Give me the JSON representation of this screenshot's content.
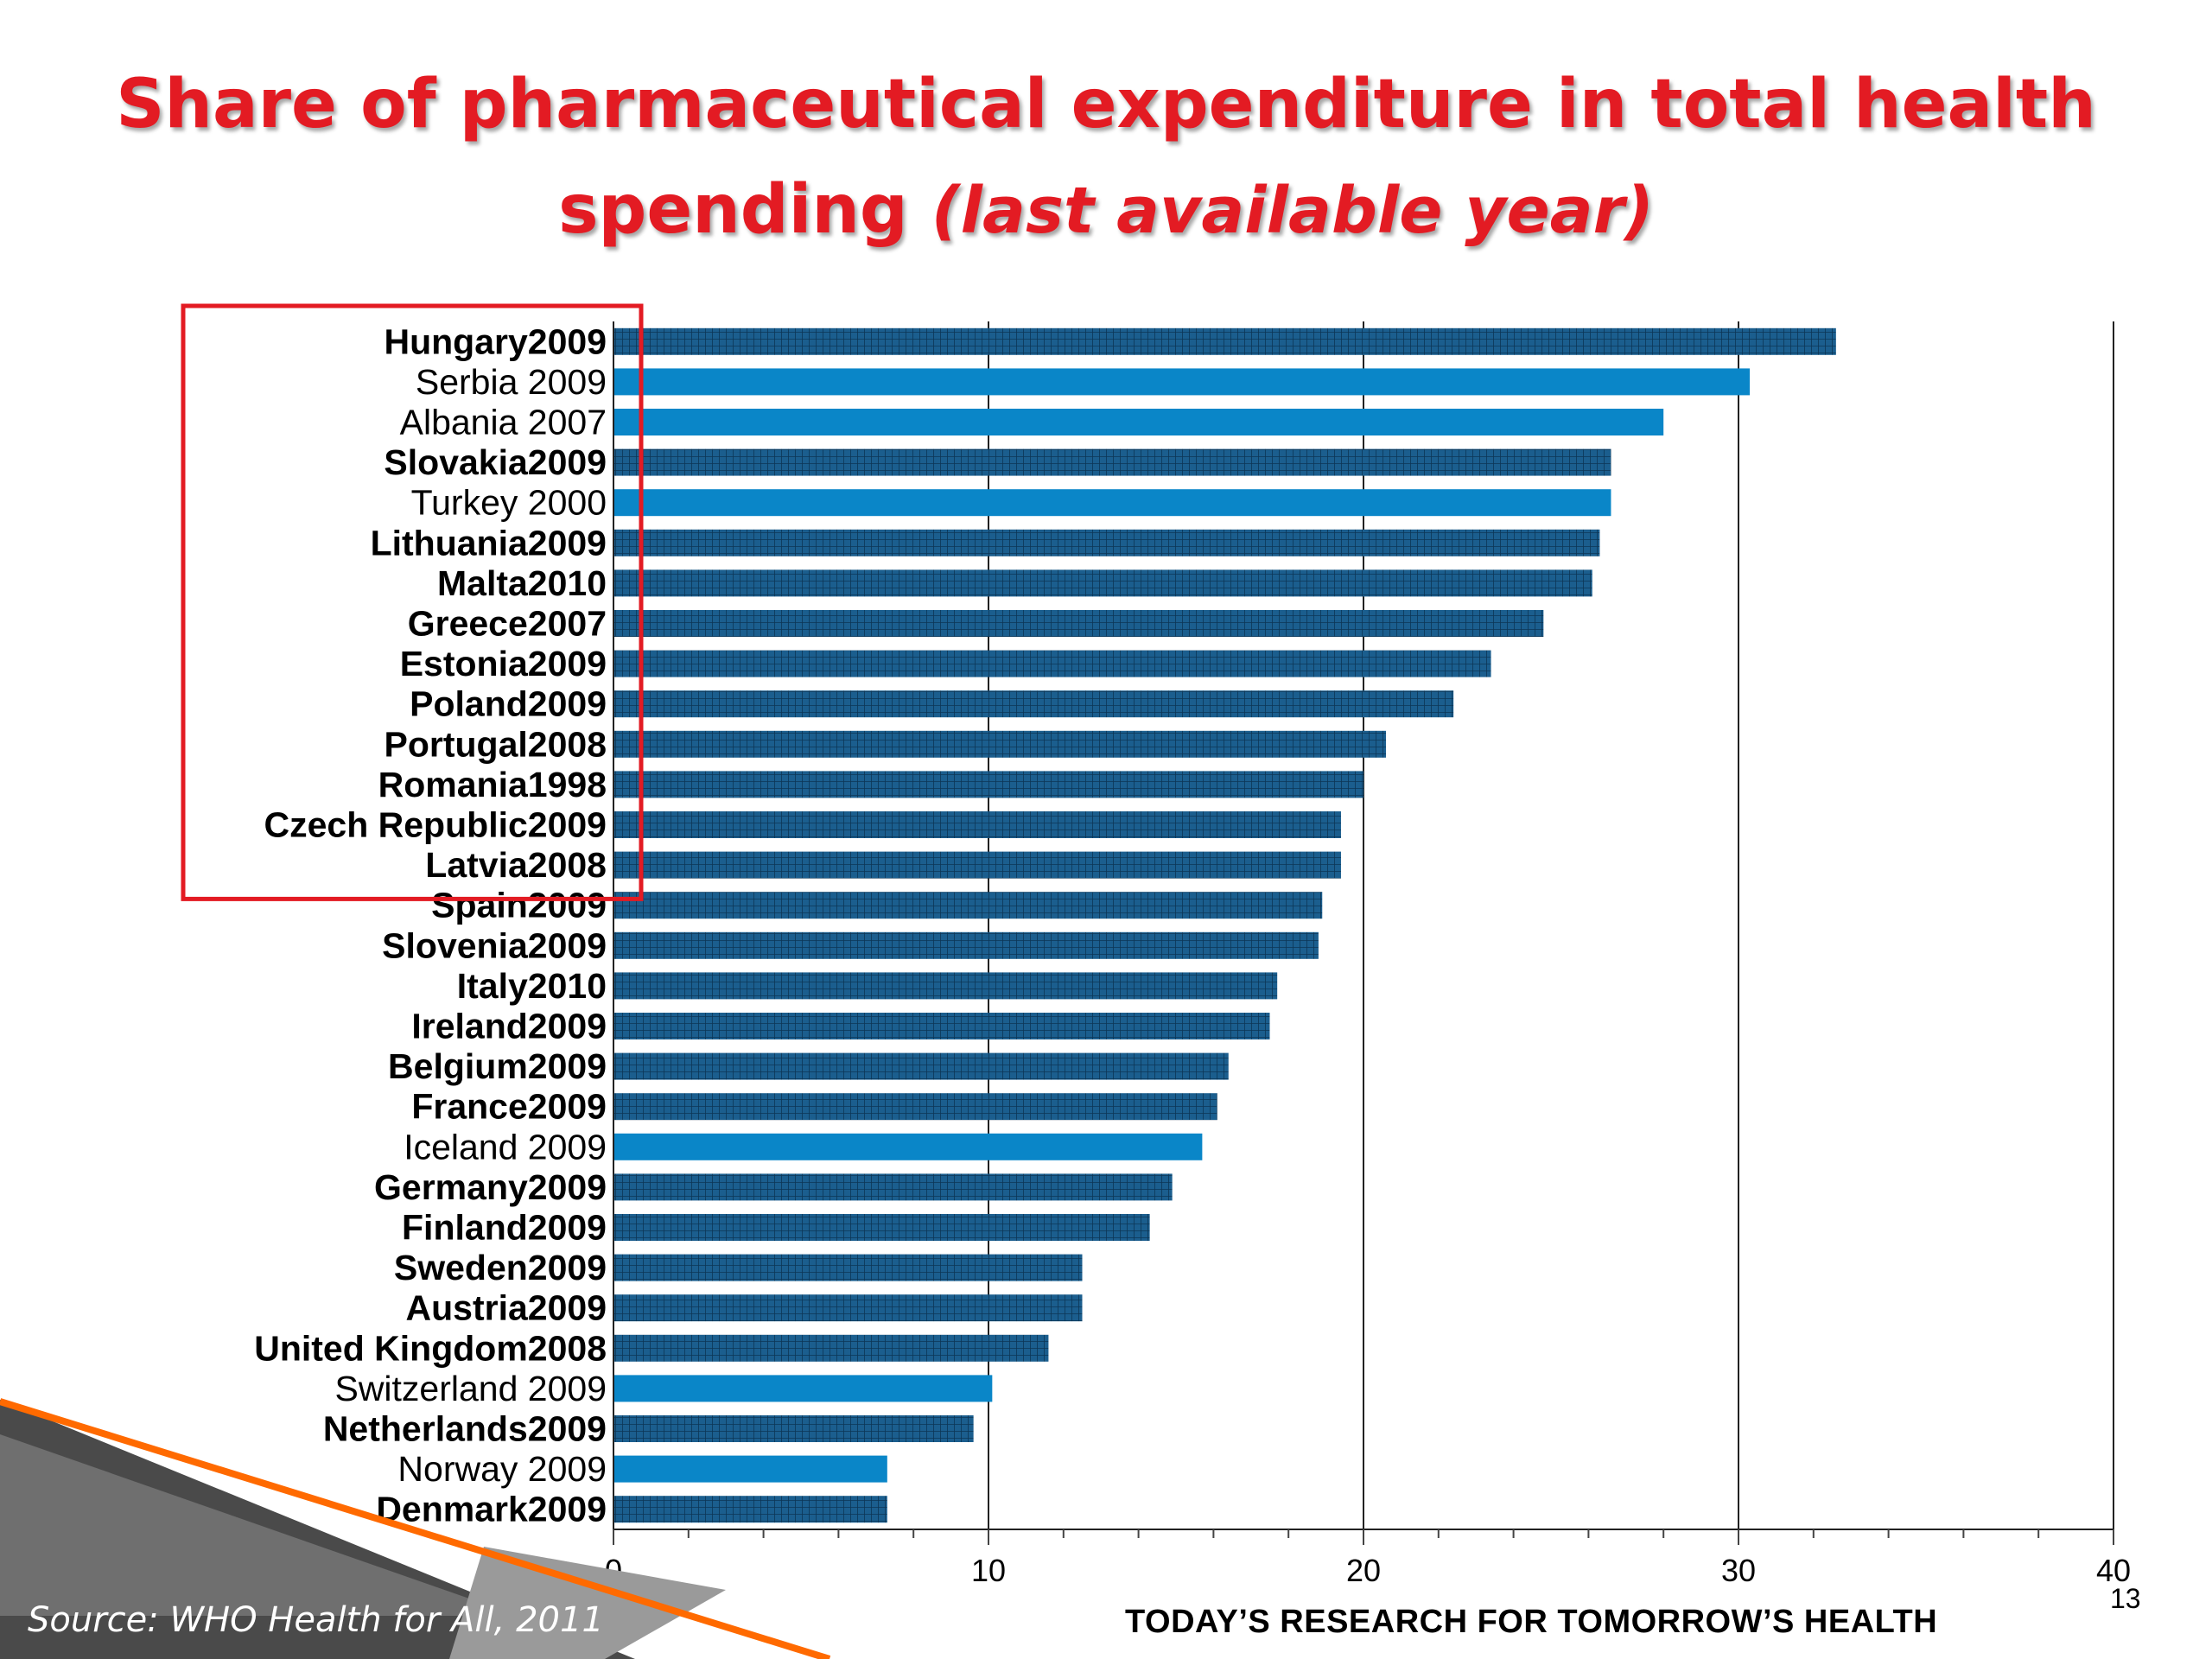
{
  "slide": {
    "title_main": "Share of pharmaceutical expenditure in total health",
    "title_line2": "spending",
    "title_suffix": "(last available year)",
    "source": "Source: WHO Health for All, 2011",
    "tagline": "TODAY’S RESEARCH FOR TOMORROW’S HEALTH",
    "page_number": "13"
  },
  "colors": {
    "title": "#e31b23",
    "bar_eu": "#1b5e8e",
    "bar_non_eu": "#0a86c8",
    "highlight_box": "#e31b23"
  },
  "chart_data": {
    "type": "bar",
    "orientation": "horizontal",
    "title": "",
    "xlabel": "",
    "ylabel": "",
    "xlim": [
      0,
      40
    ],
    "xticks": [
      0,
      10,
      20,
      30,
      40
    ],
    "grid": true,
    "categories": [
      "Hungary2009",
      "Serbia 2009",
      "Albania 2007",
      "Slovakia2009",
      "Turkey 2000",
      "Lithuania2009",
      "Malta2010",
      "Greece2007",
      "Estonia2009",
      "Poland2009",
      "Portugal2008",
      "Romania1998",
      "Czech Republic2009",
      "Latvia2008",
      "Spain2009",
      "Slovenia2009",
      "Italy2010",
      "Ireland2009",
      "Belgium2009",
      "France2009",
      "Iceland 2009",
      "Germany2009",
      "Finland2009",
      "Sweden2009",
      "Austria2009",
      "United Kingdom2008",
      "Switzerland 2009",
      "Netherlands2009",
      "Norway 2009",
      "Denmark2009"
    ],
    "values": [
      32.6,
      30.3,
      28.0,
      26.6,
      26.6,
      26.3,
      26.1,
      24.8,
      23.4,
      22.4,
      20.6,
      20.0,
      19.4,
      19.4,
      18.9,
      18.8,
      17.7,
      17.5,
      16.4,
      16.1,
      15.7,
      14.9,
      14.3,
      12.5,
      12.5,
      11.6,
      10.1,
      9.6,
      7.3,
      7.3
    ],
    "eu_member": [
      true,
      false,
      false,
      true,
      false,
      true,
      true,
      true,
      true,
      true,
      true,
      true,
      true,
      true,
      true,
      true,
      true,
      true,
      true,
      true,
      false,
      true,
      true,
      true,
      true,
      true,
      false,
      true,
      false,
      true
    ],
    "highlighted_categories": [
      "Hungary2009",
      "Serbia 2009",
      "Albania 2007",
      "Slovakia2009",
      "Turkey 2000",
      "Lithuania2009",
      "Malta2010",
      "Greece2007",
      "Estonia2009",
      "Poland2009",
      "Portugal2008",
      "Romania1998",
      "Czech Republic2009",
      "Latvia2008"
    ]
  }
}
